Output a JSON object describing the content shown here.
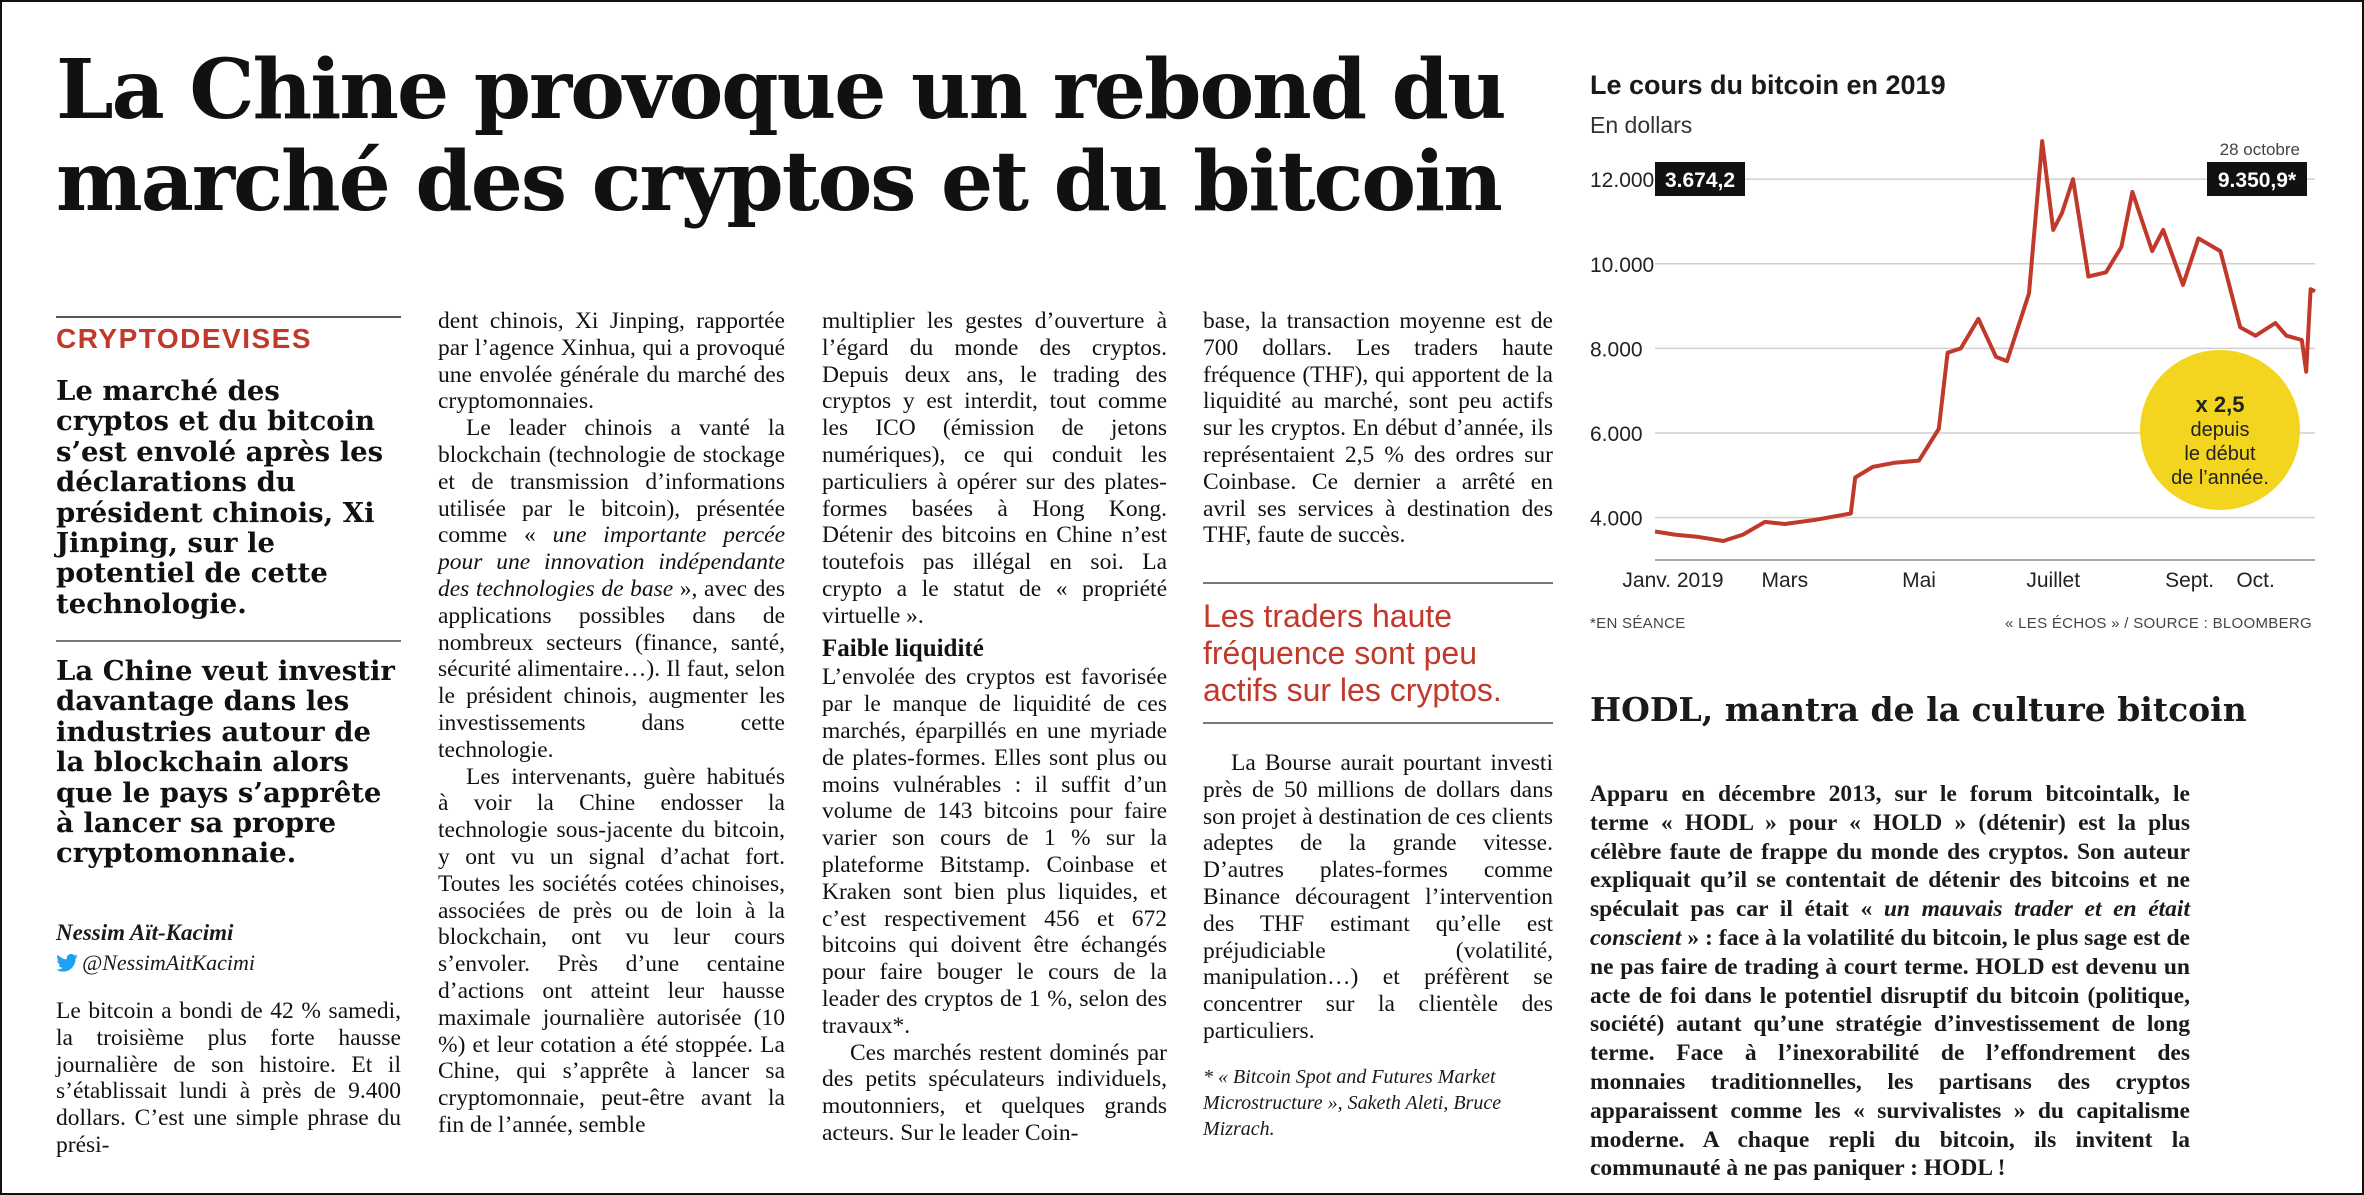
{
  "headline": "La Chine provoque un rebond du marché des cryptos et du bitcoin",
  "rubric": "CRYPTODEVISES",
  "lead_1": "Le marché des cryptos et du bitcoin s’est envolé après les déclarations du président chinois, Xi Jinping, sur le potentiel de cette technologie.",
  "lead_2": "La Chine veut investir davantage dans les industries autour de la blockchain alors que le pays s’apprête à lancer sa propre cryptomonnaie.",
  "author": "Nessim Aït-Kacimi",
  "twitter_handle": "@NessimAitKacimi",
  "col1_p1": "Le bitcoin a bondi de 42 % samedi, la troisième plus forte hausse journalière de son histoire. Et il s’établissait lundi à près de 9.400 dollars. C’est une simple phrase du prési-",
  "col2": {
    "p1": "dent chinois, Xi Jinping, rapportée par l’agence Xinhua, qui a provoqué une envolée générale du marché des cryptomonnaies.",
    "p2_before": "Le leader chinois a vanté la blockchain (technologie de stockage et de transmission d’informations utilisée par le bitcoin), présentée comme « ",
    "p2_quote": "une importante percée pour une innovation indépendante des technologies de base",
    "p2_after": " », avec des applications possibles dans de nombreux secteurs (finance, santé, sécurité alimentaire…). Il faut, selon le président chinois, augmenter les investissements dans cette technologie.",
    "p3": "Les intervenants, guère habitués à voir la Chine endosser la technologie sous-jacente du bitcoin, y ont vu un signal d’achat fort. Toutes les sociétés cotées chinoises, associées de près ou de loin à la blockchain, ont vu leur cours s’envoler. Près d’une centaine d’actions ont atteint leur hausse maximale journalière autorisée (10 %) et leur cotation a été stoppée. La Chine, qui s’apprête à lancer sa cryptomonnaie, peut-être avant la fin de l’année, semble"
  },
  "col3": {
    "p1": "multiplier les gestes d’ouverture à l’égard du monde des cryptos. Depuis deux ans, le trading des cryptos y est interdit, tout comme les ICO (émission de jetons numériques), ce qui conduit les particuliers à opérer sur des plates-formes basées à Hong Kong. Détenir des bitcoins en Chine n’est toutefois pas illégal en soi. La crypto a le statut de « propriété virtuelle ».",
    "subhead": "Faible liquidité",
    "p2": "L’envolée des cryptos est favorisée par le manque de liquidité de ces marchés, éparpillés en une myriade de plates-formes. Elles sont plus ou moins vulnérables : il suffit d’un volume de 143 bitcoins pour faire varier son cours de 1 % sur la plateforme Bitstamp. Coinbase et Kraken sont bien plus liquides, et c’est respectivement 456 et 672 bitcoins qui doivent être échangés pour faire bouger le cours de la leader des cryptos de 1 %, selon des travaux*.",
    "p3": "Ces marchés restent dominés par des petits spéculateurs individuels, moutonniers, et quelques grands acteurs. Sur le leader Coin-"
  },
  "col4": {
    "p1": "base, la transaction moyenne est de 700 dollars. Les traders haute fréquence (THF), qui apportent de la liquidité au marché, sont peu actifs sur les cryptos. En début d’année, ils représentaient 2,5 % des ordres sur Coinbase. Ce dernier a arrêté en avril ses services à destination des THF, faute de succès.",
    "pullquote": "Les traders haute fréquence sont peu actifs sur les cryptos.",
    "p2": "La Bourse aurait pourtant investi près de 50 millions de dollars dans son projet à destination de ces clients adeptes de la grande vitesse. D’autres plates-formes comme Binance découragent l’intervention des THF estimant qu’elle est préjudiciable (volatilité, manipulation…) et préfèrent se concentrer sur la clientèle des particuliers.",
    "footnote": "* « Bitcoin Spot and Futures Market Microstructure », Saketh Aleti, Bruce Mizrach."
  },
  "chart_data": {
    "type": "line",
    "title": "Le cours du bitcoin en 2019",
    "ylabel": "En dollars",
    "ylim": [
      3000,
      12500
    ],
    "yticks": [
      4000,
      6000,
      8000,
      10000,
      12000
    ],
    "ytick_labels": [
      "4.000",
      "6.000",
      "8.000",
      "10.000",
      "12.000"
    ],
    "xlim": [
      "2019-01-01",
      "2019-10-28"
    ],
    "xticks": [
      "2019-01-01",
      "2019-03-01",
      "2019-05-01",
      "2019-07-01",
      "2019-09-01",
      "2019-10-01"
    ],
    "xtick_labels": [
      "Janv. 2019",
      "Mars",
      "Mai",
      "Juillet",
      "Sept.",
      "Oct."
    ],
    "grid": true,
    "line_color": "#c0392b",
    "x": [
      "2019-01-01",
      "2019-01-10",
      "2019-01-20",
      "2019-02-01",
      "2019-02-10",
      "2019-02-20",
      "2019-03-01",
      "2019-03-15",
      "2019-03-31",
      "2019-04-02",
      "2019-04-10",
      "2019-04-20",
      "2019-05-01",
      "2019-05-10",
      "2019-05-14",
      "2019-05-20",
      "2019-05-28",
      "2019-06-05",
      "2019-06-10",
      "2019-06-20",
      "2019-06-26",
      "2019-07-01",
      "2019-07-05",
      "2019-07-10",
      "2019-07-17",
      "2019-07-25",
      "2019-08-01",
      "2019-08-06",
      "2019-08-15",
      "2019-08-20",
      "2019-08-29",
      "2019-09-05",
      "2019-09-15",
      "2019-09-24",
      "2019-10-01",
      "2019-10-10",
      "2019-10-15",
      "2019-10-22",
      "2019-10-24",
      "2019-10-26",
      "2019-10-28"
    ],
    "values": [
      3674.2,
      3600,
      3550,
      3450,
      3600,
      3900,
      3850,
      3950,
      4100,
      4950,
      5200,
      5300,
      5350,
      6100,
      7900,
      8000,
      8700,
      7800,
      7700,
      9300,
      12900,
      10800,
      11200,
      12000,
      9700,
      9800,
      10400,
      11700,
      10300,
      10800,
      9500,
      10600,
      10300,
      8500,
      8300,
      8600,
      8300,
      8200,
      7450,
      9400,
      9350.9
    ],
    "start_label": "3.674,2",
    "end_date_label": "28 octobre",
    "end_label": "9.350,9*",
    "badge": {
      "line1": "x 2,5",
      "line2": "depuis",
      "line3": "le début",
      "line4": "de l’année.",
      "color": "#f3d51f"
    },
    "note_left": "*EN SÉANCE",
    "note_right": "« LES ÉCHOS » / SOURCE : BLOOMBERG"
  },
  "hodl": {
    "title": "HODL, mantra de la culture bitcoin",
    "text_before": "Apparu en décembre 2013, sur le forum bitcointalk, le terme « HODL » pour « HOLD » (détenir) est la plus célèbre faute de frappe du monde des cryptos. Son auteur expliquait qu’il se contentait de détenir des bitcoins et ne spéculait pas car il était « ",
    "text_quote": "un mauvais trader et en était conscient",
    "text_after": " » : face à la volatilité du bitcoin, le plus sage est de ne pas faire de trading à court terme. HOLD est devenu un acte de foi dans le potentiel disruptif du bitcoin (politique, société) autant qu’une stratégie d’investissement de long terme. Face à l’inexorabilité de l’effondrement des monnaies traditionnelles, les partisans des cryptos apparaissent comme les « survivalistes » du capitalisme moderne. A chaque repli du bitcoin, ils invitent la communauté à ne pas paniquer : HODL !"
  }
}
